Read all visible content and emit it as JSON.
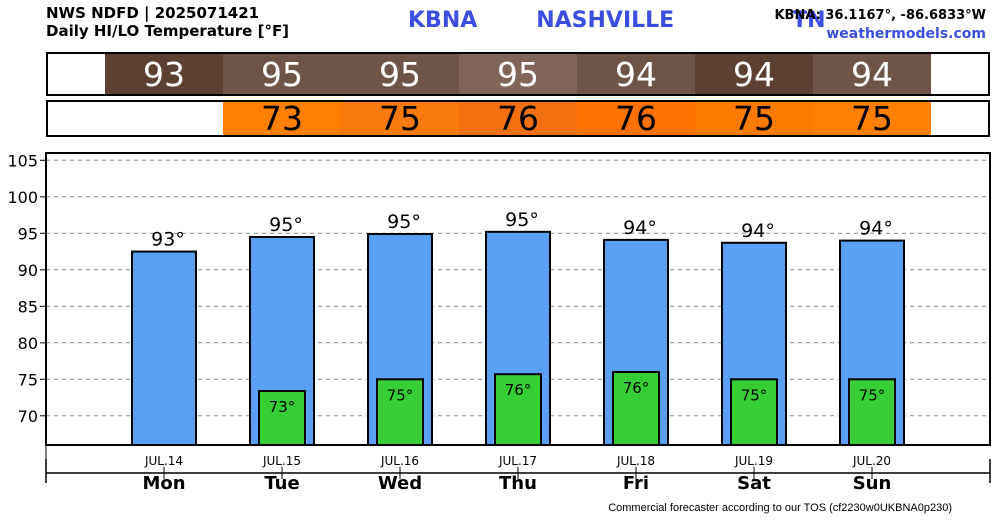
{
  "header": {
    "line1": "NWS NDFD | 2025071421",
    "line2": "Daily HI/LO Temperature [°F]",
    "station_title": "KBNA   NASHVILLE      TN",
    "coords": "KBNA: 36.1167°, -86.6833°W",
    "site": "weathermodels.com"
  },
  "hi_band": [
    {
      "value": "93",
      "color": "#5c4032"
    },
    {
      "value": "95",
      "color": "#6e5548"
    },
    {
      "value": "95",
      "color": "#6e5548"
    },
    {
      "value": "95",
      "color": "#806558"
    },
    {
      "value": "94",
      "color": "#6e5548"
    },
    {
      "value": "94",
      "color": "#5c4032"
    },
    {
      "value": "94",
      "color": "#6e5548"
    }
  ],
  "lo_band": [
    {
      "value": "73",
      "color": "#ff7f00"
    },
    {
      "value": "75",
      "color": "#f77a0a"
    },
    {
      "value": "76",
      "color": "#f27010"
    },
    {
      "value": "76",
      "color": "#ff7200"
    },
    {
      "value": "75",
      "color": "#fb7a00"
    },
    {
      "value": "75",
      "color": "#ff7f00"
    }
  ],
  "chart_data": {
    "type": "bar",
    "categories": [
      "Mon",
      "Tue",
      "Wed",
      "Thu",
      "Fri",
      "Sat",
      "Sun"
    ],
    "dates": [
      "JUL.14",
      "JUL.15",
      "JUL.16",
      "JUL.17",
      "JUL.18",
      "JUL.19",
      "JUL.20"
    ],
    "series": [
      {
        "values": [
          92.5,
          94.5,
          94.9,
          95.2,
          94.1,
          93.7,
          94.0
        ],
        "labels": [
          "93°",
          "95°",
          "95°",
          "95°",
          "94°",
          "94°",
          "94°"
        ],
        "color": "#5aa0f2"
      },
      {
        "values": [
          null,
          73.4,
          75.0,
          75.7,
          76.0,
          75.0,
          75.0
        ],
        "labels": [
          "",
          "73°",
          "75°",
          "76°",
          "76°",
          "75°",
          "75°"
        ],
        "color": "#35cf35"
      }
    ],
    "yticks": [
      70,
      75,
      80,
      85,
      90,
      95,
      100,
      105
    ],
    "ylim": [
      66,
      106
    ],
    "grid": true
  },
  "footer": "Commercial forecaster according to our TOS (cf2230w0UKBNA0p230)"
}
